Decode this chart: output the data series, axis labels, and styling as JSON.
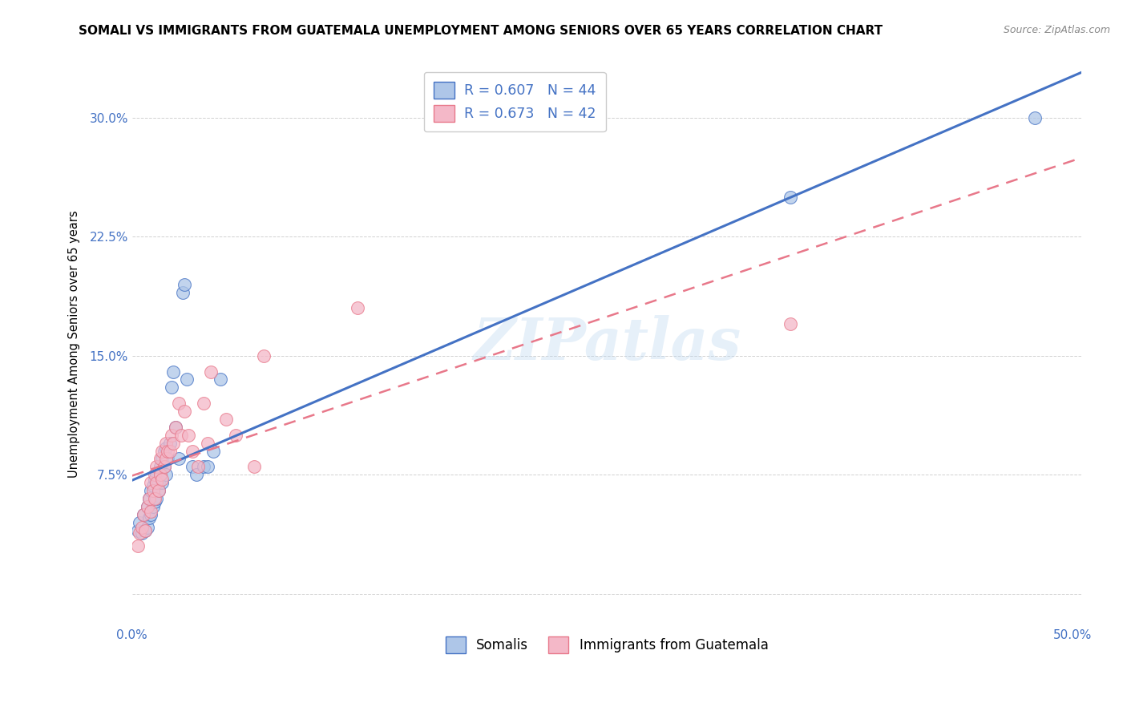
{
  "title": "SOMALI VS IMMIGRANTS FROM GUATEMALA UNEMPLOYMENT AMONG SENIORS OVER 65 YEARS CORRELATION CHART",
  "source": "Source: ZipAtlas.com",
  "ylabel_label": "Unemployment Among Seniors over 65 years",
  "xlim": [
    0.0,
    0.505
  ],
  "ylim": [
    -0.02,
    0.335
  ],
  "yticks": [
    0.0,
    0.075,
    0.15,
    0.225,
    0.3
  ],
  "ytick_labels": [
    "",
    "7.5%",
    "15.0%",
    "22.5%",
    "30.0%"
  ],
  "xticks": [
    0.0,
    0.1,
    0.2,
    0.3,
    0.4,
    0.5
  ],
  "xtick_labels": [
    "0.0%",
    "",
    "",
    "",
    "",
    "50.0%"
  ],
  "somali_color": "#aec6e8",
  "guatemala_color": "#f4b8c8",
  "somali_line_color": "#4472c4",
  "guatemala_line_color": "#e8788a",
  "legend_label_somali": "Somalis",
  "legend_label_guatemala": "Immigrants from Guatemala",
  "watermark": "ZIPatlas",
  "somali_x": [
    0.003,
    0.004,
    0.005,
    0.006,
    0.007,
    0.008,
    0.008,
    0.009,
    0.009,
    0.01,
    0.01,
    0.011,
    0.011,
    0.012,
    0.012,
    0.013,
    0.013,
    0.014,
    0.014,
    0.015,
    0.015,
    0.016,
    0.016,
    0.017,
    0.017,
    0.018,
    0.018,
    0.019,
    0.02,
    0.021,
    0.022,
    0.023,
    0.025,
    0.027,
    0.028,
    0.029,
    0.032,
    0.034,
    0.038,
    0.04,
    0.043,
    0.047,
    0.35,
    0.48
  ],
  "somali_y": [
    0.04,
    0.045,
    0.038,
    0.05,
    0.04,
    0.042,
    0.055,
    0.048,
    0.06,
    0.05,
    0.065,
    0.055,
    0.068,
    0.058,
    0.072,
    0.06,
    0.075,
    0.065,
    0.07,
    0.075,
    0.08,
    0.07,
    0.085,
    0.08,
    0.09,
    0.075,
    0.092,
    0.085,
    0.095,
    0.13,
    0.14,
    0.105,
    0.085,
    0.19,
    0.195,
    0.135,
    0.08,
    0.075,
    0.08,
    0.08,
    0.09,
    0.135,
    0.25,
    0.3
  ],
  "guatemala_x": [
    0.003,
    0.004,
    0.005,
    0.006,
    0.007,
    0.008,
    0.009,
    0.01,
    0.01,
    0.011,
    0.012,
    0.012,
    0.013,
    0.013,
    0.014,
    0.015,
    0.015,
    0.016,
    0.016,
    0.017,
    0.018,
    0.018,
    0.019,
    0.02,
    0.021,
    0.022,
    0.023,
    0.025,
    0.026,
    0.028,
    0.03,
    0.032,
    0.035,
    0.038,
    0.04,
    0.042,
    0.05,
    0.055,
    0.065,
    0.07,
    0.12,
    0.35
  ],
  "guatemala_y": [
    0.03,
    0.038,
    0.042,
    0.05,
    0.04,
    0.055,
    0.06,
    0.052,
    0.07,
    0.065,
    0.06,
    0.075,
    0.07,
    0.08,
    0.065,
    0.075,
    0.085,
    0.072,
    0.09,
    0.08,
    0.085,
    0.095,
    0.09,
    0.09,
    0.1,
    0.095,
    0.105,
    0.12,
    0.1,
    0.115,
    0.1,
    0.09,
    0.08,
    0.12,
    0.095,
    0.14,
    0.11,
    0.1,
    0.08,
    0.15,
    0.18,
    0.17
  ]
}
